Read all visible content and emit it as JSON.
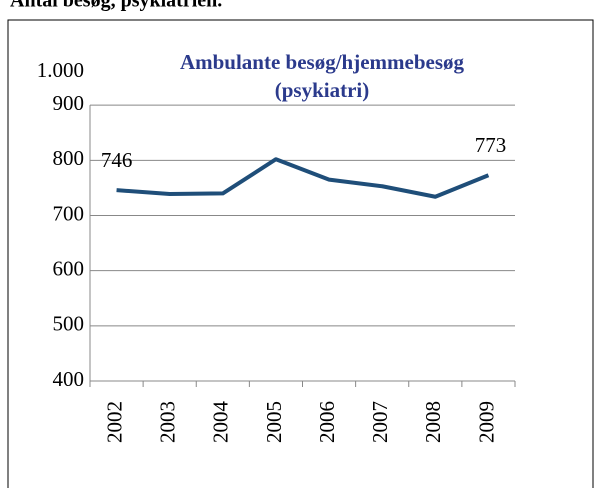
{
  "header": {
    "title": "Antal besøg, psykiatrien."
  },
  "chart_data": {
    "type": "line",
    "title": [
      "Ambulante besøg/hjemmebesøg",
      "(psykiatri)"
    ],
    "categories": [
      "2002",
      "2003",
      "2004",
      "2005",
      "2006",
      "2007",
      "2008",
      "2009"
    ],
    "series": [
      {
        "name": "Ambulante besøg/hjemmebesøg",
        "color": "#1f4e79",
        "values": [
          746,
          739,
          740,
          802,
          765,
          753,
          734,
          773
        ]
      }
    ],
    "ylim": [
      400,
      1000
    ],
    "yticks": [
      400,
      500,
      600,
      700,
      800,
      900,
      {
        "value": 1000,
        "label": "1.000"
      }
    ],
    "grid": true
  }
}
